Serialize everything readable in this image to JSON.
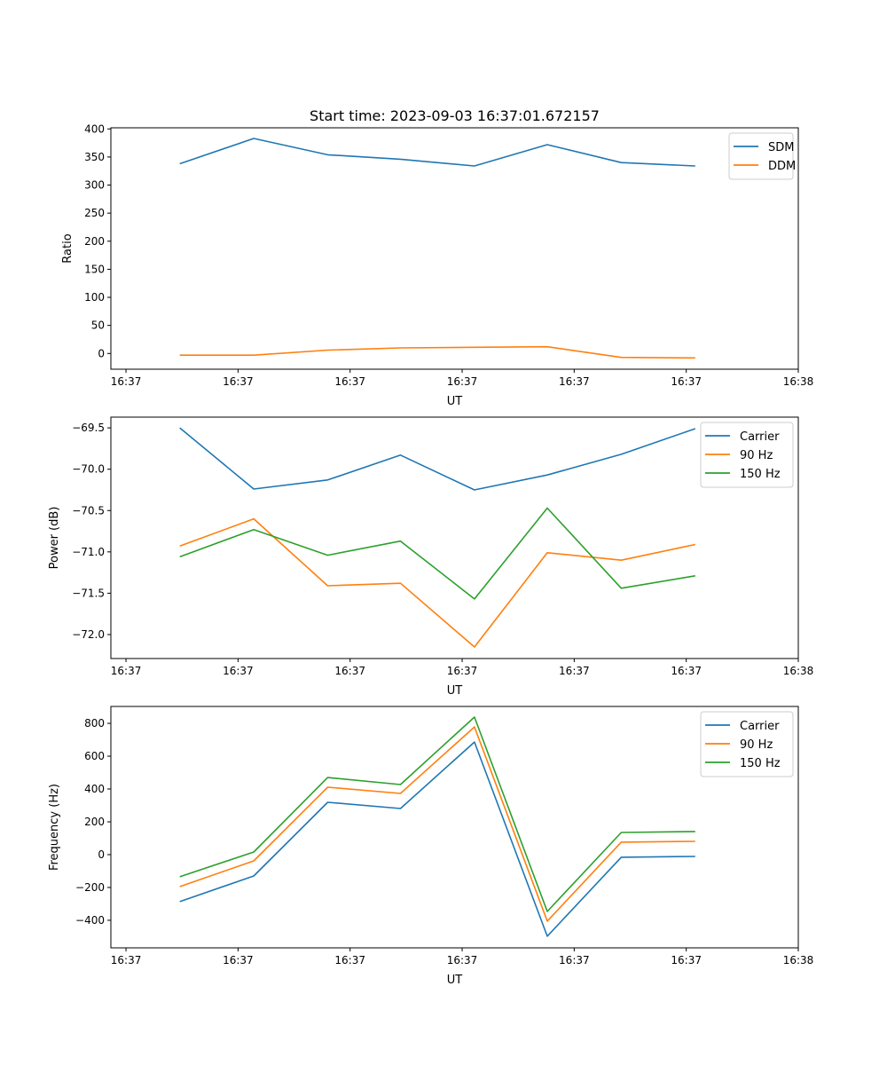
{
  "chart_data": [
    {
      "type": "line",
      "title": "Start time: 2023-09-03 16:37:01.672157",
      "xlabel": "UT",
      "ylabel": "Ratio",
      "x_unit": "seconds after 16:37:00",
      "x": [
        4.8,
        11.4,
        18.0,
        24.5,
        31.1,
        37.6,
        44.2,
        50.8
      ],
      "xlim": [
        -1.35,
        60
      ],
      "xticks": [
        0,
        10,
        20,
        30,
        40,
        50,
        60
      ],
      "xtick_labels": [
        "16:37",
        "16:37",
        "16:37",
        "16:37",
        "16:37",
        "16:37",
        "16:38"
      ],
      "ylim": [
        -28,
        402
      ],
      "yticks": [
        0,
        50,
        100,
        150,
        200,
        250,
        300,
        350,
        400
      ],
      "ytick_labels": [
        "0",
        "50",
        "100",
        "150",
        "200",
        "250",
        "300",
        "350",
        "400"
      ],
      "legend": "top-right",
      "series": [
        {
          "name": "SDM",
          "color": "#1f77b4",
          "values": [
            338,
            383,
            354,
            346,
            334,
            372,
            340,
            334
          ]
        },
        {
          "name": "DDM",
          "color": "#ff7f0e",
          "values": [
            -3,
            -3,
            6,
            10,
            11,
            12,
            -7,
            -8
          ]
        }
      ]
    },
    {
      "type": "line",
      "title": "",
      "xlabel": "UT",
      "ylabel": "Power (dB)",
      "x_unit": "seconds after 16:37:00",
      "x": [
        4.8,
        11.4,
        18.0,
        24.5,
        31.1,
        37.6,
        44.2,
        50.8
      ],
      "xlim": [
        -1.35,
        60
      ],
      "xticks": [
        0,
        10,
        20,
        30,
        40,
        50,
        60
      ],
      "xtick_labels": [
        "16:37",
        "16:37",
        "16:37",
        "16:37",
        "16:37",
        "16:37",
        "16:38"
      ],
      "ylim": [
        -72.29,
        -69.37
      ],
      "yticks": [
        -72.0,
        -71.5,
        -71.0,
        -70.5,
        -70.0,
        -69.5
      ],
      "ytick_labels": [
        "−72.0",
        "−71.5",
        "−71.0",
        "−70.5",
        "−70.0",
        "−69.5"
      ],
      "legend": "top-right",
      "series": [
        {
          "name": "Carrier",
          "color": "#1f77b4",
          "values": [
            -69.5,
            -70.24,
            -70.13,
            -69.83,
            -70.25,
            -70.07,
            -69.82,
            -69.51
          ]
        },
        {
          "name": "90 Hz",
          "color": "#ff7f0e",
          "values": [
            -70.93,
            -70.6,
            -71.41,
            -71.38,
            -72.15,
            -71.01,
            -71.1,
            -70.91
          ]
        },
        {
          "name": "150 Hz",
          "color": "#2ca02c",
          "values": [
            -71.06,
            -70.73,
            -71.04,
            -70.87,
            -71.57,
            -70.47,
            -71.44,
            -71.29
          ]
        }
      ]
    },
    {
      "type": "line",
      "title": "",
      "xlabel": "UT",
      "ylabel": "Frequency (Hz)",
      "x_unit": "seconds after 16:37:00",
      "x": [
        4.8,
        11.4,
        18.0,
        24.5,
        31.1,
        37.6,
        44.2,
        50.8
      ],
      "xlim": [
        -1.35,
        60
      ],
      "xticks": [
        0,
        10,
        20,
        30,
        40,
        50,
        60
      ],
      "xtick_labels": [
        "16:37",
        "16:37",
        "16:37",
        "16:37",
        "16:37",
        "16:37",
        "16:38"
      ],
      "ylim": [
        -568,
        903
      ],
      "yticks": [
        -400,
        -200,
        0,
        200,
        400,
        600,
        800
      ],
      "ytick_labels": [
        "−400",
        "−200",
        "0",
        "200",
        "400",
        "600",
        "800"
      ],
      "legend": "top-right",
      "series": [
        {
          "name": "Carrier",
          "color": "#1f77b4",
          "values": [
            -286,
            -130,
            319,
            281,
            686,
            -497,
            -16,
            -11
          ]
        },
        {
          "name": "90 Hz",
          "color": "#ff7f0e",
          "values": [
            -195,
            -38,
            411,
            373,
            778,
            -405,
            76,
            81
          ]
        },
        {
          "name": "150 Hz",
          "color": "#2ca02c",
          "values": [
            -135,
            16,
            470,
            427,
            838,
            -346,
            135,
            141
          ]
        }
      ]
    }
  ]
}
